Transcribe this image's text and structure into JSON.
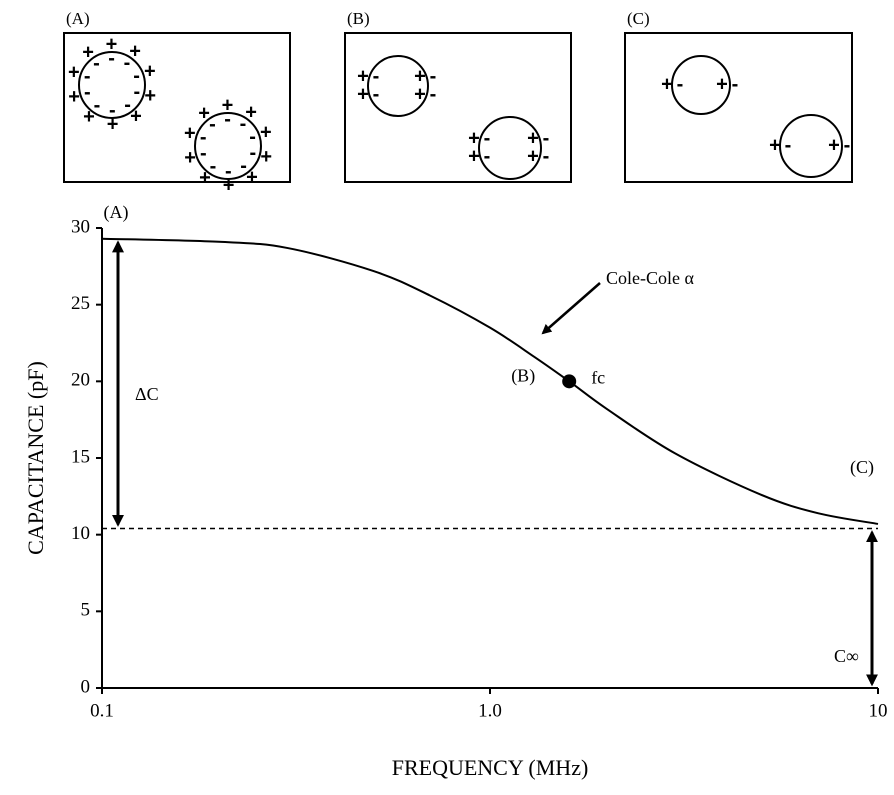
{
  "insets": [
    {
      "label": "(A)"
    },
    {
      "label": "(B)"
    },
    {
      "label": "(C)"
    }
  ],
  "charge_symbols": {
    "positive": "+",
    "negative": "-"
  },
  "chart_data": {
    "type": "line",
    "x_label": "FREQUENCY   (MHz)",
    "y_label": "CAPACITANCE   (pF)",
    "xscale": "log",
    "xlim": [
      0.1,
      10
    ],
    "xticks": [
      0.1,
      {
        "value": 1,
        "label": "1.0"
      },
      10
    ],
    "ylim": [
      0,
      30
    ],
    "yticks": [
      0,
      5,
      10,
      15,
      20,
      25,
      30
    ],
    "series": [
      {
        "color": "#000000",
        "x": [
          0.1,
          0.2,
          0.3,
          0.5,
          0.7,
          1.0,
          1.3,
          1.6,
          2.0,
          3.0,
          5.0,
          7.0,
          10
        ],
        "values": [
          29.3,
          29.1,
          28.7,
          27.2,
          25.6,
          23.5,
          21.6,
          20.0,
          18.2,
          15.3,
          12.6,
          11.4,
          10.7
        ]
      }
    ],
    "c_inf": 10.4,
    "delta_c_top": 29.3,
    "fc_point": {
      "x": 1.6,
      "y": 20
    },
    "annotations": {
      "point_a": "(A)",
      "point_b": "(B)",
      "point_c": "(C)",
      "fc": "fc",
      "cole_cole": "Cole-Cole α",
      "delta_c": "ΔC",
      "c_inf": "C∞"
    }
  }
}
